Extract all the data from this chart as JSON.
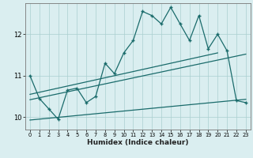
{
  "title": "",
  "xlabel": "Humidex (Indice chaleur)",
  "bg_color": "#daeef0",
  "grid_color": "#aacfcf",
  "line_color": "#1a6b6b",
  "x_ticks": [
    0,
    1,
    2,
    3,
    4,
    5,
    6,
    7,
    8,
    9,
    10,
    11,
    12,
    13,
    14,
    15,
    16,
    17,
    18,
    19,
    20,
    21,
    22,
    23
  ],
  "y_ticks": [
    10,
    11,
    12
  ],
  "xlim": [
    -0.5,
    23.5
  ],
  "ylim": [
    9.7,
    12.75
  ],
  "series1_x": [
    0,
    1,
    2,
    3,
    4,
    5,
    6,
    7,
    8,
    9,
    10,
    11,
    12,
    13,
    14,
    15,
    16,
    17,
    18,
    19,
    20,
    21,
    22,
    23
  ],
  "series1_y": [
    11.0,
    10.45,
    10.2,
    9.95,
    10.65,
    10.7,
    10.35,
    10.5,
    11.3,
    11.05,
    11.55,
    11.85,
    12.55,
    12.45,
    12.25,
    12.65,
    12.25,
    11.85,
    12.45,
    11.65,
    12.0,
    11.6,
    10.4,
    10.35
  ],
  "trend1_x": [
    0,
    20
  ],
  "trend1_y": [
    10.55,
    11.55
  ],
  "trend2_x": [
    0,
    23
  ],
  "trend2_y": [
    10.42,
    11.52
  ],
  "trend3_x": [
    0,
    23
  ],
  "trend3_y": [
    9.93,
    10.43
  ]
}
